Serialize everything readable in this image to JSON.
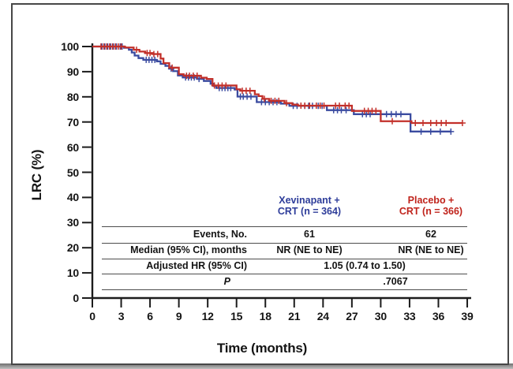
{
  "colors": {
    "curve_blue": "#3a4ba0",
    "curve_red": "#c2302a",
    "text_blue": "#2e3d9a",
    "text_red": "#c0241c",
    "axis": "#1c1c1c",
    "border": "#474747"
  },
  "chart_data": {
    "type": "line",
    "subtype": "kaplan-meier-step",
    "title": "",
    "xlabel": "Time (months)",
    "ylabel": "LRC (%)",
    "xlim": [
      0,
      39
    ],
    "ylim": [
      0,
      100
    ],
    "xticks": [
      0,
      3,
      6,
      9,
      12,
      15,
      18,
      21,
      24,
      27,
      30,
      33,
      36,
      39
    ],
    "yticks": [
      0,
      10,
      20,
      30,
      40,
      50,
      60,
      70,
      80,
      90,
      100
    ],
    "grid": false,
    "legend_position": "table-header",
    "series": [
      {
        "name": "Xevinapant + CRT (n = 364)",
        "color": "#3a4ba0",
        "steps": [
          [
            0,
            100
          ],
          [
            3.3,
            99.5
          ],
          [
            3.8,
            98.7
          ],
          [
            4.1,
            97.6
          ],
          [
            4.4,
            96.4
          ],
          [
            4.8,
            95.4
          ],
          [
            5.3,
            94.7
          ],
          [
            6.7,
            94.1
          ],
          [
            7.1,
            93.1
          ],
          [
            7.6,
            92.3
          ],
          [
            8.0,
            91.2
          ],
          [
            8.4,
            90.2
          ],
          [
            8.9,
            88.5
          ],
          [
            9.4,
            87.7
          ],
          [
            10.9,
            87.1
          ],
          [
            11.6,
            86.3
          ],
          [
            12.3,
            85.2
          ],
          [
            12.6,
            84.3
          ],
          [
            12.9,
            83.5
          ],
          [
            14.8,
            82.9
          ],
          [
            15.1,
            80.1
          ],
          [
            17.1,
            77.9
          ],
          [
            19.6,
            77.3
          ],
          [
            20.5,
            76.4
          ],
          [
            24.4,
            74.7
          ],
          [
            27.2,
            73.1
          ],
          [
            33.1,
            66.2
          ]
        ],
        "end": 37.3,
        "censors": [
          1.0,
          1.3,
          1.6,
          1.9,
          2.2,
          2.5,
          2.9,
          3.1,
          5.6,
          5.9,
          6.2,
          6.5,
          8.2,
          9.7,
          10.0,
          10.3,
          10.6,
          11.1,
          13.2,
          13.5,
          13.8,
          14.1,
          14.4,
          15.4,
          15.7,
          16.1,
          16.5,
          17.6,
          18.0,
          18.4,
          18.8,
          19.2,
          20.9,
          21.3,
          22.1,
          22.5,
          22.9,
          23.5,
          23.9,
          25.1,
          25.5,
          25.9,
          26.4,
          28.1,
          28.5,
          28.9,
          30.6,
          31.1,
          31.6,
          32.1,
          34.2,
          35.2,
          36.2,
          37.3
        ]
      },
      {
        "name": "Placebo + CRT (n = 366)",
        "color": "#c2302a",
        "steps": [
          [
            0,
            100
          ],
          [
            3.4,
            99.6
          ],
          [
            4.3,
            98.7
          ],
          [
            4.9,
            98.0
          ],
          [
            5.5,
            97.4
          ],
          [
            6.3,
            97.0
          ],
          [
            7.1,
            95.2
          ],
          [
            7.4,
            93.4
          ],
          [
            8.0,
            91.6
          ],
          [
            9.0,
            89.0
          ],
          [
            9.5,
            88.4
          ],
          [
            11.3,
            87.6
          ],
          [
            11.9,
            87.1
          ],
          [
            12.5,
            84.5
          ],
          [
            15.0,
            83.0
          ],
          [
            15.4,
            82.4
          ],
          [
            16.9,
            81.0
          ],
          [
            17.3,
            80.3
          ],
          [
            17.7,
            79.2
          ],
          [
            18.4,
            78.4
          ],
          [
            20.0,
            77.5
          ],
          [
            20.8,
            76.9
          ],
          [
            21.4,
            76.5
          ],
          [
            27.0,
            74.4
          ],
          [
            30.0,
            70.3
          ],
          [
            33.2,
            69.6
          ]
        ],
        "end": 38.5,
        "censors": [
          0.9,
          1.2,
          1.5,
          1.8,
          2.1,
          2.4,
          2.7,
          3.0,
          4.6,
          5.7,
          6.0,
          6.4,
          6.8,
          8.3,
          9.8,
          10.1,
          10.5,
          10.9,
          12.7,
          13.1,
          13.5,
          13.9,
          15.6,
          16.0,
          16.4,
          17.9,
          18.6,
          19.0,
          19.4,
          20.2,
          21.7,
          22.1,
          22.6,
          23.3,
          23.7,
          24.1,
          25.3,
          25.7,
          26.3,
          26.7,
          28.3,
          28.7,
          29.1,
          29.5,
          31.2,
          33.6,
          34.4,
          35.2,
          35.8,
          36.3,
          36.8,
          38.5
        ]
      }
    ]
  },
  "axes": {
    "ylabel": "LRC (%)",
    "xlabel": "Time (months)"
  },
  "legend": {
    "xev_line1": "Xevinapant +",
    "xev_line2": "CRT (n = 364)",
    "plc_line1": "Placebo +",
    "plc_line2": "CRT (n = 366)"
  },
  "table": {
    "rows": [
      {
        "label": "Events, No.",
        "xev": "61",
        "plc": "62"
      },
      {
        "label": "Median (95% CI), months",
        "xev": "NR (NE to NE)",
        "plc": "NR (NE to NE)"
      },
      {
        "label": "Adjusted HR (95% CI)",
        "value": "1.05 (0.74 to 1.50)"
      },
      {
        "label": "P",
        "value": ".7067"
      }
    ]
  }
}
